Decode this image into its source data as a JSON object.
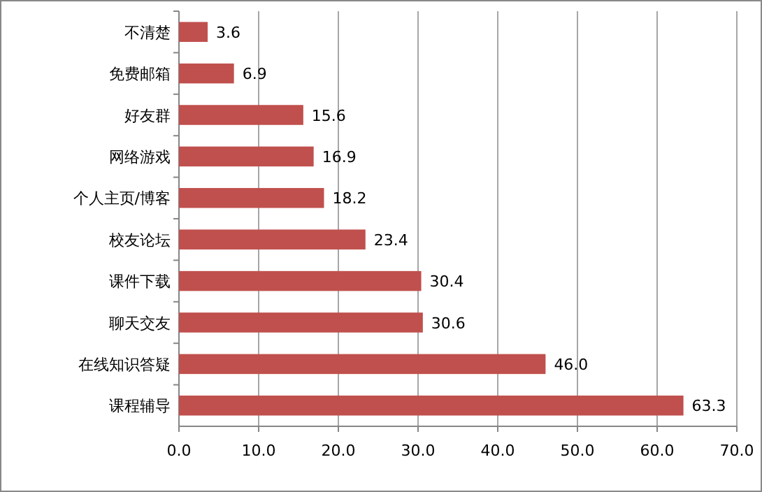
{
  "chart_data": {
    "type": "bar",
    "orientation": "horizontal",
    "categories": [
      "不清楚",
      "免费邮箱",
      "好友群",
      "网络游戏",
      "个人主页/博客",
      "校友论坛",
      "课件下载",
      "聊天交友",
      "在线知识答疑",
      "课程辅导"
    ],
    "values": [
      3.6,
      6.9,
      15.6,
      16.9,
      18.2,
      23.4,
      30.4,
      30.6,
      46.0,
      63.3
    ],
    "value_labels": [
      "3.6",
      "6.9",
      "15.6",
      "16.9",
      "18.2",
      "23.4",
      "30.4",
      "30.6",
      "46.0",
      "63.3"
    ],
    "color": "#c0504d",
    "xlim": [
      0,
      70
    ],
    "xticks": [
      {
        "value": 0,
        "label": "0.0"
      },
      {
        "value": 10,
        "label": "10.0"
      },
      {
        "value": 20,
        "label": "20.0"
      },
      {
        "value": 30,
        "label": "30.0"
      },
      {
        "value": 40,
        "label": "40.0"
      },
      {
        "value": 50,
        "label": "50.0"
      },
      {
        "value": 60,
        "label": "60.0"
      },
      {
        "value": 70,
        "label": "70.0"
      }
    ],
    "grid": "x"
  }
}
